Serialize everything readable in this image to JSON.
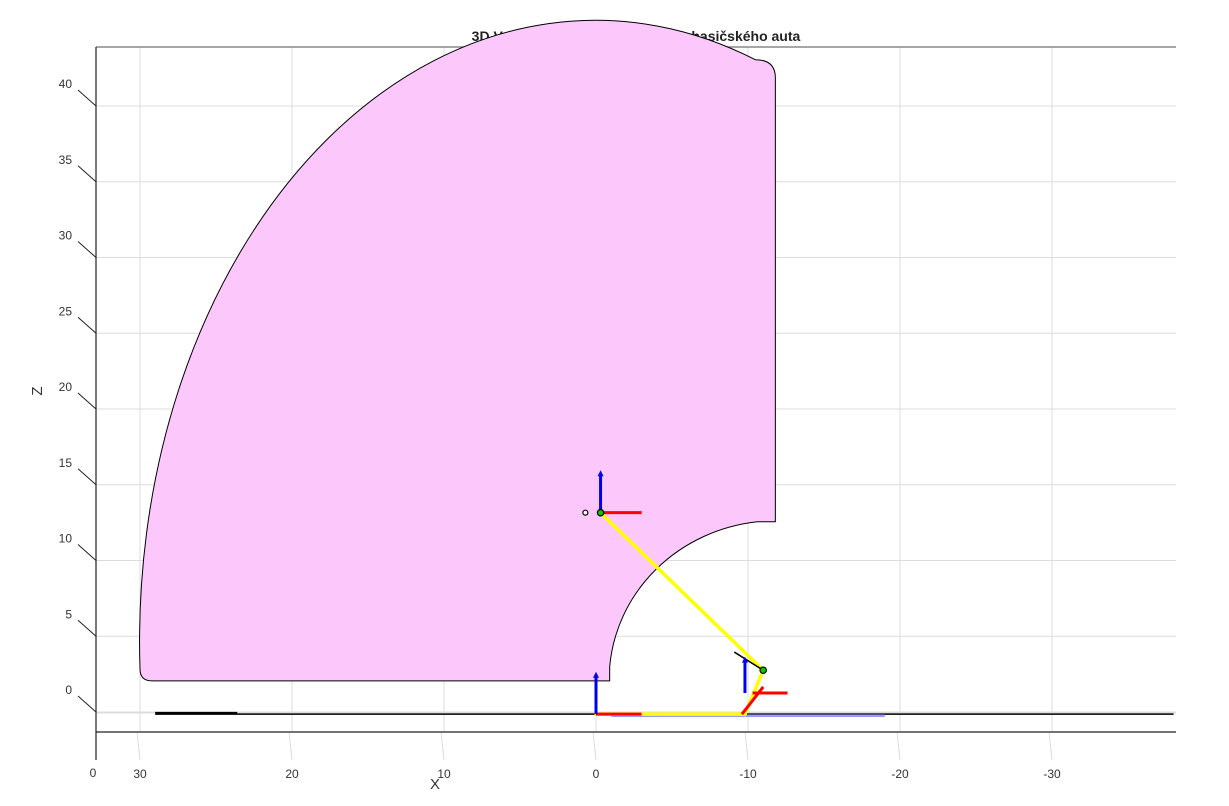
{
  "chart_data": {
    "type": "3d-line",
    "title": "3D Vykreslenie výsuvnej plošiny hasičského auta",
    "xlabel": "X",
    "zlabel": "Z",
    "x_ticks": [
      30,
      20,
      10,
      0,
      -10,
      -20,
      -30
    ],
    "x_ticks_labels": [
      "30",
      "20",
      "10",
      "0",
      "-10",
      "-20",
      "-30"
    ],
    "z_ticks": [
      0,
      5,
      10,
      15,
      20,
      25,
      30,
      35,
      40
    ],
    "z_ticks_labels": [
      "0",
      "5",
      "10",
      "15",
      "20",
      "25",
      "30",
      "35",
      "40"
    ],
    "y_corner_tick": "0",
    "xlim": [
      33,
      -38
    ],
    "zlim": [
      -2.7,
      43
    ],
    "grid": true,
    "colors": {
      "workspace_fill": "#fcc8fc",
      "workspace_edge": "#000000",
      "arm": "#ffff00",
      "frame_x_axis": "#ff0000",
      "frame_z_axis": "#0000ee",
      "joint": "#00cc00",
      "base_line": "#000000",
      "truck_line": "#9999ff"
    },
    "workspace_boundary": {
      "outer_radius": 30,
      "inner_radius": 11,
      "x_min": -11.8,
      "z_base": 1,
      "inner_top_z": 11.5,
      "outer_top_z": 42,
      "start_x": 30
    },
    "arm_segments": [
      {
        "x": [
          0,
          -9.8
        ],
        "z": [
          -1.2,
          -1.2
        ]
      },
      {
        "x": [
          -9.8,
          -11
        ],
        "z": [
          -1.2,
          1.7
        ]
      },
      {
        "x": [
          -11,
          -0.3
        ],
        "z": [
          1.7,
          12.1
        ]
      }
    ],
    "joints": [
      {
        "x": -11,
        "z": 1.7
      },
      {
        "x": -0.3,
        "z": 12.1
      }
    ],
    "frames": [
      {
        "x": 0,
        "z": -1.2,
        "red_dx": [
          3,
          0
        ],
        "red_dz": [
          0,
          0
        ],
        "blue_dx": 0,
        "blue_dz": 2.8
      },
      {
        "x": -9.8,
        "z": 0.2,
        "red_dx": [
          0.5,
          2.8
        ],
        "red_dz": [
          0,
          0
        ],
        "blue_dx": 0,
        "blue_dz": 2.4
      },
      {
        "x": -0.3,
        "z": 12.1,
        "red_dx": [
          2.7,
          0
        ],
        "red_dz": [
          0,
          0
        ],
        "blue_dx": 0,
        "blue_dz": 2.8
      }
    ],
    "ground_lines": [
      {
        "x": [
          29,
          -38
        ],
        "z": [
          -1.2,
          -1.2
        ],
        "color": "base_line"
      },
      {
        "x": [
          -1,
          -19
        ],
        "z": [
          -1.3,
          -1.3
        ],
        "color": "truck_line"
      }
    ]
  }
}
